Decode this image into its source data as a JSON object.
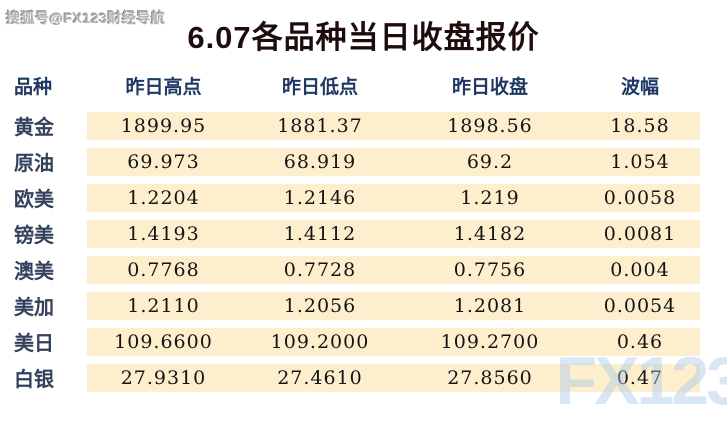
{
  "watermark_top": "搜狐号@FX123财经导航",
  "watermark_bottom": "FX123",
  "title": "6.07各品种当日收盘报价",
  "colors": {
    "band_background": "#fdeecd",
    "header_text": "#1f3864",
    "label_text": "#33415c",
    "title_text": "#1e0c0c",
    "watermark_blue": "#a8c7e8"
  },
  "table": {
    "headers": [
      "品种",
      "昨日高点",
      "昨日低点",
      "昨日收盘",
      "波幅"
    ],
    "rows": [
      {
        "name": "黄金",
        "high": "1899.95",
        "low": "1881.37",
        "close": "1898.56",
        "range": "18.58"
      },
      {
        "name": "原油",
        "high": "69.973",
        "low": "68.919",
        "close": "69.2",
        "range": "1.054"
      },
      {
        "name": "欧美",
        "high": "1.2204",
        "low": "1.2146",
        "close": "1.219",
        "range": "0.0058"
      },
      {
        "name": "镑美",
        "high": "1.4193",
        "low": "1.4112",
        "close": "1.4182",
        "range": "0.0081"
      },
      {
        "name": "澳美",
        "high": "0.7768",
        "low": "0.7728",
        "close": "0.7756",
        "range": "0.004"
      },
      {
        "name": "美加",
        "high": "1.2110",
        "low": "1.2056",
        "close": "1.2081",
        "range": "0.0054"
      },
      {
        "name": "美日",
        "high": "109.6600",
        "low": "109.2000",
        "close": "109.2700",
        "range": "0.46"
      },
      {
        "name": "白银",
        "high": "27.9310",
        "low": "27.4610",
        "close": "27.8560",
        "range": "0.47"
      }
    ]
  },
  "chart_data": {
    "type": "table",
    "title": "6.07各品种当日收盘报价",
    "columns": [
      "品种",
      "昨日高点",
      "昨日低点",
      "昨日收盘",
      "波幅"
    ],
    "rows": [
      [
        "黄金",
        1899.95,
        1881.37,
        1898.56,
        18.58
      ],
      [
        "原油",
        69.973,
        68.919,
        69.2,
        1.054
      ],
      [
        "欧美",
        1.2204,
        1.2146,
        1.219,
        0.0058
      ],
      [
        "镑美",
        1.4193,
        1.4112,
        1.4182,
        0.0081
      ],
      [
        "澳美",
        0.7768,
        0.7728,
        0.7756,
        0.004
      ],
      [
        "美加",
        1.211,
        1.2056,
        1.2081,
        0.0054
      ],
      [
        "美日",
        109.66,
        109.2,
        109.27,
        0.46
      ],
      [
        "白银",
        27.931,
        27.461,
        27.856,
        0.47
      ]
    ]
  }
}
